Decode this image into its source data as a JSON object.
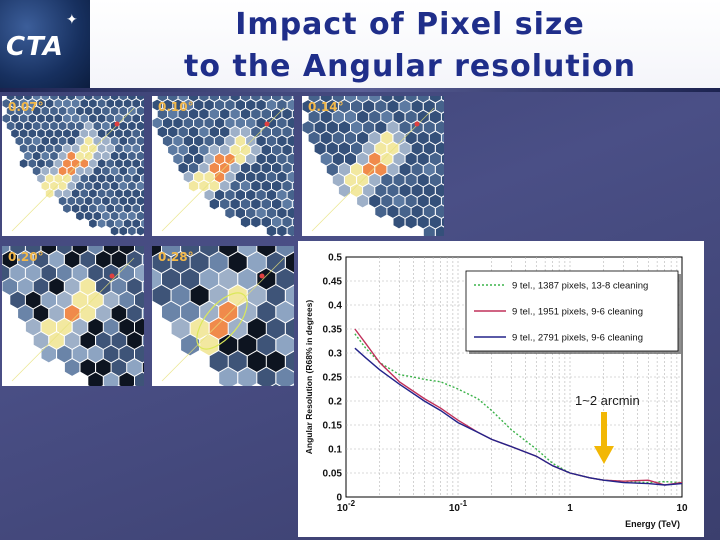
{
  "header": {
    "logo_text": "CTA",
    "title_line1": "Impact of Pixel size",
    "title_line2": "to the Angular resolution"
  },
  "panels": [
    {
      "label": "0.07°"
    },
    {
      "label": "0.10°"
    },
    {
      "label": "0.14°"
    },
    {
      "label": "0.20°"
    },
    {
      "label": "0.28°"
    }
  ],
  "annotation": "1~2 arcmin",
  "chart_data": {
    "type": "line",
    "xscale": "log",
    "xlim": [
      0.01,
      10
    ],
    "ylim": [
      0,
      0.5
    ],
    "xlabel": "Energy (TeV)",
    "ylabel": "Angular Resolution (R68% in degrees)",
    "xticks": [
      "10-2",
      "10-1",
      "1",
      "10"
    ],
    "yticks": [
      "0",
      "0.05",
      "0.1",
      "0.15",
      "0.2",
      "0.25",
      "0.3",
      "0.35",
      "0.4",
      "0.45",
      "0.5"
    ],
    "grid": true,
    "legend_position": "top-right",
    "series": [
      {
        "name": "9 tel., 1387 pixels, 13-8 cleaning",
        "color": "#3cb34a",
        "dash": "dotted",
        "x": [
          0.012,
          0.015,
          0.02,
          0.03,
          0.04,
          0.05,
          0.07,
          0.1,
          0.15,
          0.2,
          0.3,
          0.5,
          0.7,
          1,
          1.5,
          2,
          3,
          5,
          7,
          10
        ],
        "y": [
          0.34,
          0.31,
          0.28,
          0.255,
          0.25,
          0.245,
          0.24,
          0.225,
          0.205,
          0.18,
          0.14,
          0.1,
          0.07,
          0.05,
          0.04,
          0.035,
          0.033,
          0.03,
          0.032,
          0.03
        ]
      },
      {
        "name": "9 tel., 1951 pixels, 9-6 cleaning",
        "color": "#c0305a",
        "dash": "solid",
        "x": [
          0.012,
          0.015,
          0.02,
          0.03,
          0.05,
          0.07,
          0.1,
          0.15,
          0.2,
          0.3,
          0.5,
          0.7,
          1,
          1.5,
          2,
          3,
          5,
          7,
          10
        ],
        "y": [
          0.35,
          0.32,
          0.28,
          0.24,
          0.205,
          0.185,
          0.16,
          0.135,
          0.12,
          0.105,
          0.085,
          0.065,
          0.05,
          0.04,
          0.035,
          0.033,
          0.035,
          0.025,
          0.03
        ]
      },
      {
        "name": "9 tel., 2791 pixels, 9-6 cleaning",
        "color": "#23238a",
        "dash": "solid",
        "x": [
          0.012,
          0.015,
          0.02,
          0.03,
          0.05,
          0.07,
          0.1,
          0.15,
          0.2,
          0.3,
          0.5,
          0.7,
          1,
          1.5,
          2,
          3,
          5,
          7,
          10
        ],
        "y": [
          0.31,
          0.29,
          0.265,
          0.235,
          0.2,
          0.18,
          0.155,
          0.135,
          0.12,
          0.105,
          0.085,
          0.065,
          0.05,
          0.04,
          0.035,
          0.03,
          0.028,
          0.025,
          0.028
        ]
      }
    ]
  },
  "colors": {
    "title": "#1f2e8a",
    "background": "#3f4479",
    "arrow": "#f2b705",
    "panel_label": "#f3b94a"
  }
}
